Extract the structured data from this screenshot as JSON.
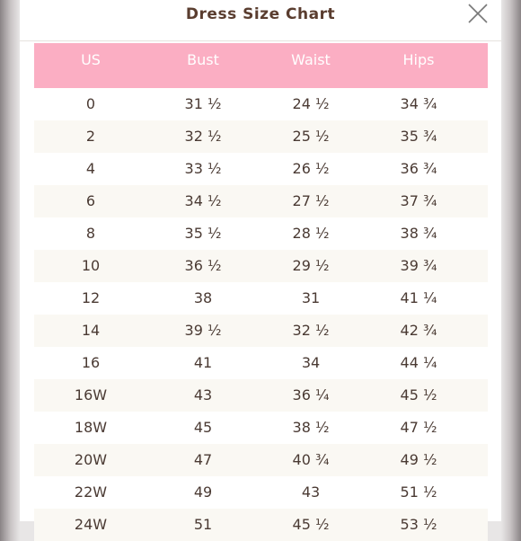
{
  "header": {
    "title": "Dress Size Chart"
  },
  "table": {
    "columns": [
      "US",
      "Bust",
      "Waist",
      "Hips"
    ],
    "rows": [
      [
        "0",
        "31 ½",
        "24 ½",
        "34 ¾"
      ],
      [
        "2",
        "32 ½",
        "25 ½",
        "35 ¾"
      ],
      [
        "4",
        "33 ½",
        "26 ½",
        "36 ¾"
      ],
      [
        "6",
        "34 ½",
        "27 ½",
        "37 ¾"
      ],
      [
        "8",
        "35 ½",
        "28 ½",
        "38 ¾"
      ],
      [
        "10",
        "36 ½",
        "29 ½",
        "39 ¾"
      ],
      [
        "12",
        "38",
        "31",
        "41 ¼"
      ],
      [
        "14",
        "39 ½",
        "32 ½",
        "42 ¾"
      ],
      [
        "16",
        "41",
        "34",
        "44 ¼"
      ],
      [
        "16W",
        "43",
        "36 ¼",
        "45 ½"
      ],
      [
        "18W",
        "45",
        "38 ½",
        "47 ½"
      ],
      [
        "20W",
        "47",
        "40 ¾",
        "49 ½"
      ],
      [
        "22W",
        "49",
        "43",
        "51 ½"
      ],
      [
        "24W",
        "51",
        "45 ½",
        "53 ½"
      ]
    ]
  }
}
